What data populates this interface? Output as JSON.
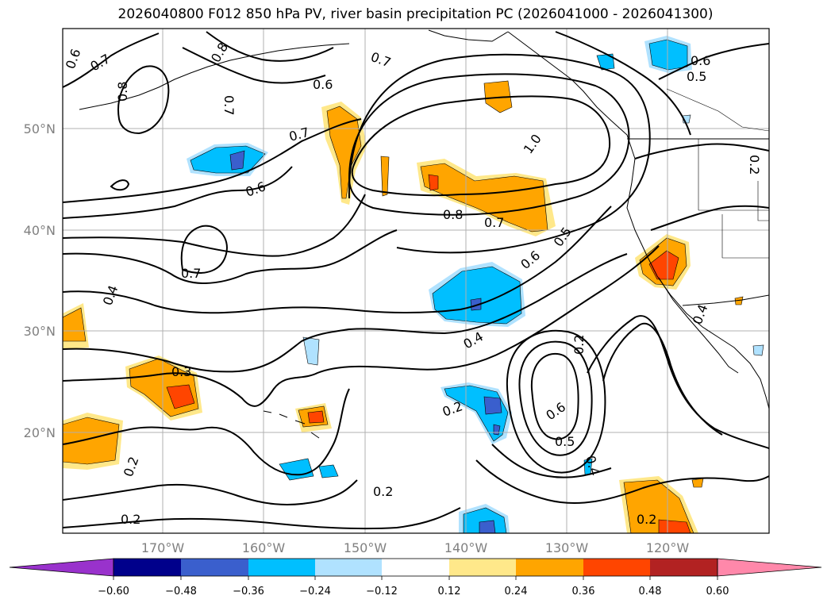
{
  "title": "2026040800 F012 850 hPa PV, river basin precipitation PC (2026041000 - 2026041300)",
  "axes": {
    "lat_labels": [
      "50°N",
      "40°N",
      "30°N",
      "20°N"
    ],
    "lon_labels": [
      "170°W",
      "160°W",
      "150°W",
      "140°W",
      "130°W",
      "120°W"
    ]
  },
  "contour_labels": [
    {
      "text": "0.6"
    },
    {
      "text": "0.7"
    },
    {
      "text": "0.8"
    },
    {
      "text": "0.7"
    },
    {
      "text": "0.8"
    },
    {
      "text": "0.7"
    },
    {
      "text": "0.6"
    },
    {
      "text": "0.6"
    },
    {
      "text": "0.5"
    },
    {
      "text": "0.7"
    },
    {
      "text": "0.6"
    },
    {
      "text": "1.0"
    },
    {
      "text": "0.8"
    },
    {
      "text": "0.7"
    },
    {
      "text": "0.5"
    },
    {
      "text": "0.6"
    },
    {
      "text": "0.7"
    },
    {
      "text": "0.4"
    },
    {
      "text": "0.3"
    },
    {
      "text": "0.2"
    },
    {
      "text": "0.2"
    },
    {
      "text": "0.4"
    },
    {
      "text": "0.2"
    },
    {
      "text": "0.6"
    },
    {
      "text": "0.5"
    },
    {
      "text": "0.4"
    },
    {
      "text": "0.2"
    },
    {
      "text": "0.2"
    },
    {
      "text": "0.2"
    },
    {
      "text": "0.4"
    },
    {
      "text": "0.2"
    }
  ],
  "colorbar": {
    "ticks": [
      "−0.60",
      "−0.48",
      "−0.36",
      "−0.24",
      "−0.12",
      "0.12",
      "0.24",
      "0.36",
      "0.48",
      "0.60"
    ],
    "colors": [
      "#9932CC",
      "#00008B",
      "#3A5FCD",
      "#00BFFF",
      "#B0E2FF",
      "#FFFFFF",
      "#FFE88A",
      "#FFA500",
      "#FF4500",
      "#B22222",
      "#FF88AA"
    ]
  },
  "chart_data": {
    "type": "contour-map",
    "title": "2026040800 F012 850 hPa PV, river basin precipitation PC (2026041000 - 2026041300)",
    "region": {
      "lon_range": [
        -180,
        -110
      ],
      "lat_range": [
        10,
        60
      ]
    },
    "contour_variable": "850 hPa PV",
    "contour_levels": [
      0.2,
      0.3,
      0.4,
      0.5,
      0.6,
      0.7,
      0.8,
      1.0
    ],
    "fill_variable": "river basin precipitation PC",
    "fill_levels": [
      -0.6,
      -0.48,
      -0.36,
      -0.24,
      -0.12,
      0.12,
      0.24,
      0.36,
      0.48,
      0.6
    ],
    "xticks": [
      "170°W",
      "160°W",
      "150°W",
      "140°W",
      "130°W",
      "120°W"
    ],
    "yticks": [
      "50°N",
      "40°N",
      "30°N",
      "20°N"
    ]
  }
}
